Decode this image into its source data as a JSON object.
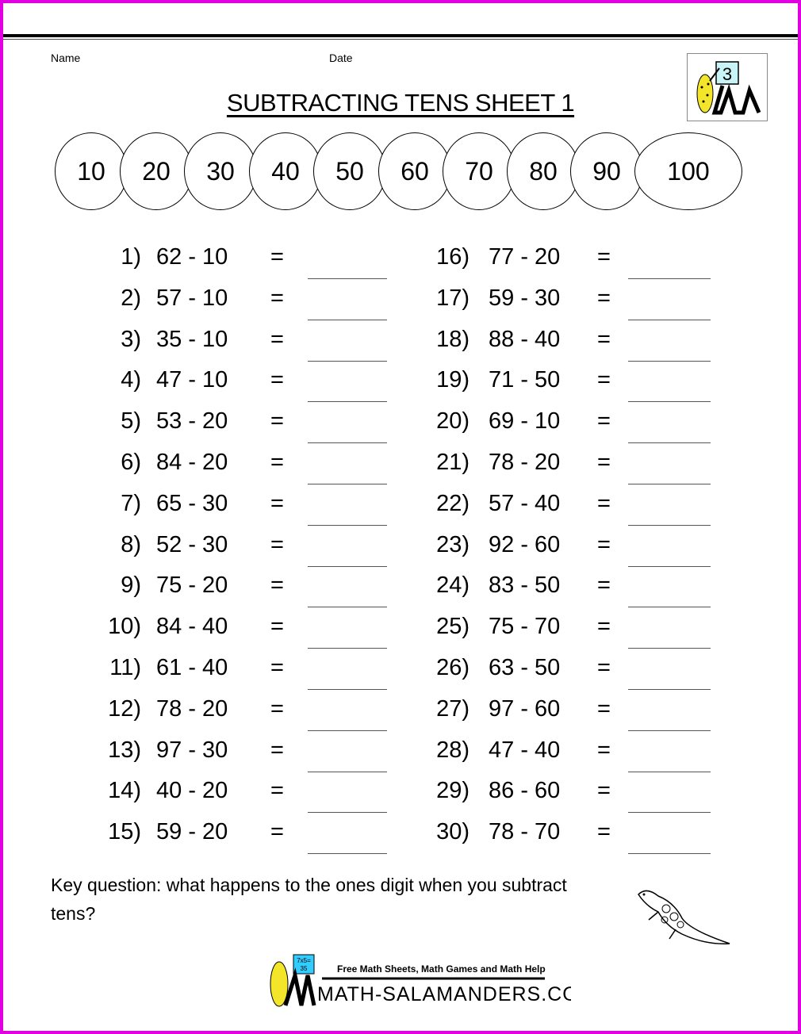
{
  "header": {
    "name_label": "Name",
    "date_label": "Date",
    "title": "SUBTRACTING TENS SHEET 1",
    "logo_grade": "3"
  },
  "number_line": [
    "10",
    "20",
    "30",
    "40",
    "50",
    "60",
    "70",
    "80",
    "90",
    "100"
  ],
  "problems_left": [
    {
      "n": "1)",
      "q": "62 - 10"
    },
    {
      "n": "2)",
      "q": "57 - 10"
    },
    {
      "n": "3)",
      "q": "35 - 10"
    },
    {
      "n": "4)",
      "q": "47 - 10"
    },
    {
      "n": "5)",
      "q": "53 - 20"
    },
    {
      "n": "6)",
      "q": "84 - 20"
    },
    {
      "n": "7)",
      "q": "65 - 30"
    },
    {
      "n": "8)",
      "q": "52 - 30"
    },
    {
      "n": "9)",
      "q": "75 - 20"
    },
    {
      "n": "10)",
      "q": "84 - 40"
    },
    {
      "n": "11)",
      "q": "61 - 40"
    },
    {
      "n": "12)",
      "q": "78 - 20"
    },
    {
      "n": "13)",
      "q": "97 - 30"
    },
    {
      "n": "14)",
      "q": "40 - 20"
    },
    {
      "n": "15)",
      "q": "59 - 20"
    }
  ],
  "problems_right": [
    {
      "n": "16)",
      "q": "77 - 20"
    },
    {
      "n": "17)",
      "q": "59 - 30"
    },
    {
      "n": "18)",
      "q": "88 - 40"
    },
    {
      "n": "19)",
      "q": "71 - 50"
    },
    {
      "n": "20)",
      "q": "69 - 10"
    },
    {
      "n": "21)",
      "q": "78 - 20"
    },
    {
      "n": "22)",
      "q": "57 - 40"
    },
    {
      "n": "23)",
      "q": "92 - 60"
    },
    {
      "n": "24)",
      "q": "83 - 50"
    },
    {
      "n": "25)",
      "q": "75 - 70"
    },
    {
      "n": "26)",
      "q": "63 - 50"
    },
    {
      "n": "27)",
      "q": "97 - 60"
    },
    {
      "n": "28)",
      "q": "47 - 40"
    },
    {
      "n": "29)",
      "q": "86 - 60"
    },
    {
      "n": "30)",
      "q": "78 - 70"
    }
  ],
  "equals": "=",
  "key_question": "Key question: what happens to the ones digit when you subtract tens?",
  "footer": {
    "tagline": "Free Math Sheets, Math Games and Math Help",
    "site": "MATH-SALAMANDERS.COM",
    "sign": "7x5= 35"
  },
  "colors": {
    "border": "#e100e1",
    "logo_board": "#c8f4f8",
    "footer_board": "#33ccff",
    "salamander": "#f2e52a"
  }
}
